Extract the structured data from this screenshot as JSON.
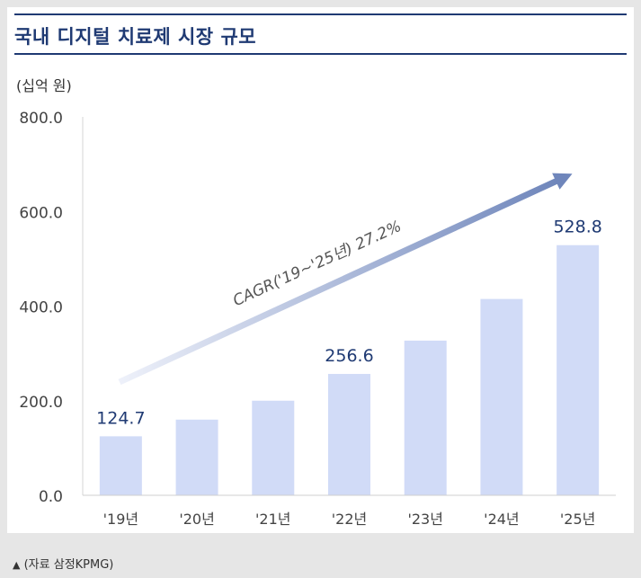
{
  "title": "국내 디지털 치료제 시장 규모",
  "unit": "(십억  원)",
  "caption": "(자료 삼정KPMG)",
  "caption_marker": "▲",
  "colors": {
    "title": "#1f3a73",
    "bar": "#d1dbf7",
    "label": "#1f3a73",
    "arrow": "#6f86bb",
    "axis_text": "#444444"
  },
  "chart_data": {
    "type": "bar",
    "categories": [
      "'19년",
      "'20년",
      "'21년",
      "'22년",
      "'23년",
      "'24년",
      "'25년"
    ],
    "values": [
      124.7,
      160,
      200,
      256.6,
      327,
      415,
      528.8
    ],
    "data_labels": [
      {
        "index": 0,
        "text": "124.7"
      },
      {
        "index": 3,
        "text": "256.6"
      },
      {
        "index": 6,
        "text": "528.8"
      }
    ],
    "yticks": [
      "0.0",
      "200.0",
      "400.0",
      "600.0",
      "800.0"
    ],
    "ytick_values": [
      0,
      200,
      400,
      600,
      800
    ],
    "ylim": [
      0,
      800
    ],
    "grid": false,
    "annotation": "CAGR('19~'25년) 27.2%"
  }
}
